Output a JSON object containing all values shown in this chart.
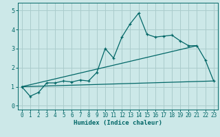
{
  "xlabel": "Humidex (Indice chaleur)",
  "background_color": "#cce8e8",
  "grid_color": "#aacccc",
  "line_color": "#006666",
  "xlim": [
    -0.5,
    23.5
  ],
  "ylim": [
    -0.2,
    5.4
  ],
  "xticks": [
    0,
    1,
    2,
    3,
    4,
    5,
    6,
    7,
    8,
    9,
    10,
    11,
    12,
    13,
    14,
    15,
    16,
    17,
    18,
    19,
    20,
    21,
    22,
    23
  ],
  "yticks": [
    0,
    1,
    2,
    3,
    4,
    5
  ],
  "series1_x": [
    0,
    1,
    2,
    3,
    4,
    5,
    6,
    7,
    8,
    9,
    10,
    11,
    12,
    13,
    14,
    15,
    16,
    17,
    18,
    19,
    20,
    21,
    22,
    23
  ],
  "series1_y": [
    1.0,
    0.5,
    0.7,
    1.2,
    1.2,
    1.3,
    1.25,
    1.35,
    1.3,
    1.75,
    3.0,
    2.5,
    3.6,
    4.3,
    4.85,
    3.75,
    3.6,
    3.65,
    3.7,
    3.4,
    3.15,
    3.15,
    2.4,
    1.3
  ],
  "series2_x": [
    0,
    23
  ],
  "series2_y": [
    1.0,
    1.3
  ],
  "series3_x": [
    0,
    21
  ],
  "series3_y": [
    1.0,
    3.15
  ],
  "marker": "+"
}
